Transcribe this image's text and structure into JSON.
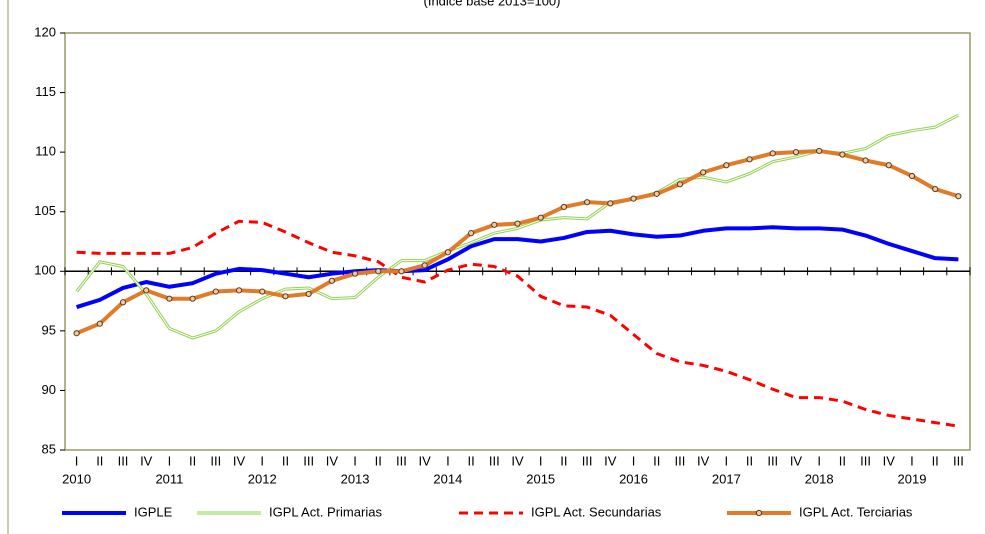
{
  "chart_data": {
    "type": "line",
    "subtitle": "(Índice base 2013=100)",
    "categories": [
      "I",
      "II",
      "III",
      "IV",
      "I",
      "II",
      "III",
      "IV",
      "I",
      "II",
      "III",
      "IV",
      "I",
      "II",
      "III",
      "IV",
      "I",
      "II",
      "III",
      "IV",
      "I",
      "II",
      "III",
      "IV",
      "I",
      "II",
      "III",
      "IV",
      "I",
      "II",
      "III",
      "IV",
      "I",
      "II",
      "III",
      "IV",
      "I",
      "II",
      "III"
    ],
    "year_labels": [
      "2010",
      "2011",
      "2012",
      "2013",
      "2014",
      "2015",
      "2016",
      "2017",
      "2018",
      "2019"
    ],
    "ylim": [
      85,
      120
    ],
    "yticks": [
      85,
      90,
      95,
      100,
      105,
      110,
      115,
      120
    ],
    "baseline": 100,
    "series": [
      {
        "name": "IGPLE",
        "color": "#0000ff",
        "style": "solid",
        "width": 4,
        "values": [
          97.0,
          97.6,
          98.6,
          99.1,
          98.7,
          99.0,
          99.8,
          100.2,
          100.1,
          99.8,
          99.5,
          99.8,
          100.0,
          100.1,
          100.0,
          100.1,
          101.0,
          102.1,
          102.7,
          102.7,
          102.5,
          102.8,
          103.3,
          103.4,
          103.1,
          102.9,
          103.0,
          103.4,
          103.6,
          103.6,
          103.7,
          103.6,
          103.6,
          103.5,
          103.0,
          102.3,
          101.7,
          101.1,
          101.0
        ]
      },
      {
        "name": "IGPL Act. Primarias",
        "color": "#92d050",
        "style": "double",
        "width": 3,
        "values": [
          98.3,
          100.8,
          100.4,
          98.1,
          95.2,
          94.4,
          95.0,
          96.6,
          97.7,
          98.5,
          98.6,
          97.7,
          97.8,
          99.5,
          100.9,
          100.9,
          101.7,
          102.4,
          103.2,
          103.6,
          104.3,
          104.5,
          104.4,
          105.8,
          106.1,
          106.6,
          107.7,
          107.9,
          107.5,
          108.2,
          109.2,
          109.6,
          110.1,
          109.9,
          110.3,
          111.4,
          111.8,
          112.1,
          113.1
        ]
      },
      {
        "name": "IGPL Act. Secundarias",
        "color": "#ff0000",
        "style": "dashed",
        "width": 3,
        "values": [
          101.6,
          101.5,
          101.5,
          101.5,
          101.5,
          102.0,
          103.2,
          104.2,
          104.1,
          103.3,
          102.4,
          101.6,
          101.3,
          100.8,
          99.5,
          99.1,
          100.1,
          100.6,
          100.4,
          99.6,
          97.9,
          97.1,
          97.0,
          96.3,
          94.7,
          93.1,
          92.4,
          92.1,
          91.6,
          90.9,
          90.1,
          89.4,
          89.4,
          89.1,
          88.4,
          87.9,
          87.6,
          87.3,
          87.0
        ]
      },
      {
        "name": "IGPL Act. Terciarias",
        "color": "#e07b2a",
        "style": "dotted-markers",
        "width": 4,
        "values": [
          94.8,
          95.6,
          97.4,
          98.4,
          97.7,
          97.7,
          98.3,
          98.4,
          98.3,
          97.9,
          98.1,
          99.2,
          99.8,
          100.0,
          100.0,
          100.5,
          101.6,
          103.2,
          103.9,
          104.0,
          104.5,
          105.4,
          105.8,
          105.7,
          106.1,
          106.5,
          107.3,
          108.3,
          108.9,
          109.4,
          109.9,
          110.0,
          110.1,
          109.8,
          109.3,
          108.9,
          108.0,
          106.9,
          106.3
        ]
      }
    ]
  }
}
